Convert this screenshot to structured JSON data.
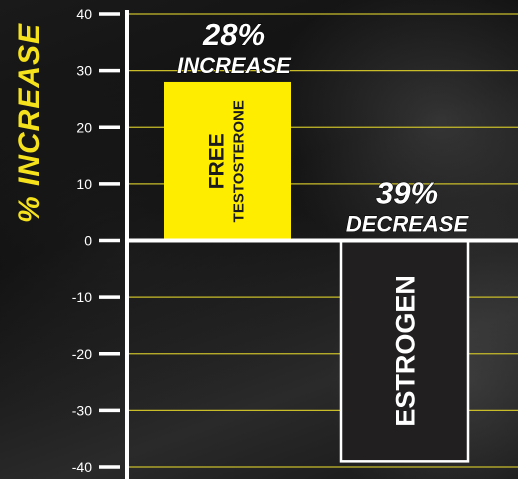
{
  "chart_data": {
    "type": "bar",
    "ylabel": "% INCREASE",
    "ylim": [
      -40,
      40
    ],
    "yticks": [
      40,
      30,
      20,
      10,
      0,
      -10,
      -20,
      -30,
      -40
    ],
    "grid": true,
    "bars": [
      {
        "name": "free-testosterone",
        "label_lines": [
          "FREE",
          "TESTOSTERONE"
        ],
        "value": 28,
        "annotation_value": "28%",
        "annotation_text": "INCREASE",
        "color": "#ffed00",
        "text_color": "#1a1a1a"
      },
      {
        "name": "estrogen",
        "label_lines": [
          "ESTROGEN"
        ],
        "value": -39,
        "annotation_value": "39%",
        "annotation_text": "DECREASE",
        "color": "#221f20",
        "text_color": "#ffffff"
      }
    ]
  },
  "colors": {
    "accent_yellow": "#f5e21c",
    "gridline": "#c9bd2a",
    "axis": "#ffffff"
  }
}
